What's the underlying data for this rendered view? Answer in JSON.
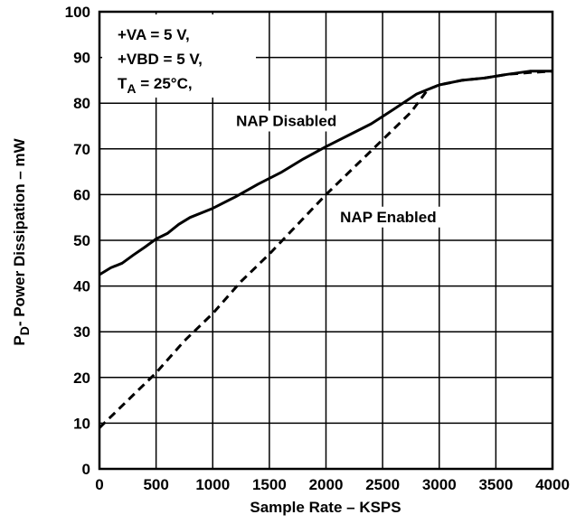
{
  "chart_data": {
    "type": "line",
    "xlabel": "Sample Rate – KSPS",
    "ylabel": "- Power Dissipation – mW",
    "ylabel_symbol": "P",
    "ylabel_subscript": "D",
    "xlim": [
      0,
      4000
    ],
    "ylim": [
      0,
      100
    ],
    "x_ticks": [
      "0",
      "500",
      "1000",
      "1500",
      "2000",
      "2500",
      "3000",
      "3500",
      "4000"
    ],
    "y_ticks": [
      "0",
      "10",
      "20",
      "30",
      "40",
      "50",
      "60",
      "70",
      "80",
      "90",
      "100"
    ],
    "grid": true,
    "conditions": {
      "line1": "+VA = 5 V,",
      "line2": "+VBD = 5 V,",
      "line3_symbol": "T",
      "line3_subscript": "A",
      "line3_rest": " = 25°C,"
    },
    "series": [
      {
        "name": "NAP Disabled",
        "style": "solid",
        "x": [
          0,
          100,
          200,
          300,
          400,
          500,
          600,
          700,
          800,
          1000,
          1200,
          1400,
          1600,
          1800,
          2000,
          2200,
          2400,
          2600,
          2800,
          2900,
          3000,
          3200,
          3400,
          3600,
          3800,
          4000
        ],
        "y": [
          42.5,
          44,
          45,
          46.8,
          48.5,
          50.3,
          51.5,
          53.5,
          55,
          57,
          59.5,
          62.3,
          64.8,
          67.8,
          70.5,
          73,
          75.5,
          78.7,
          82,
          83,
          84,
          85,
          85.5,
          86.3,
          87,
          87
        ]
      },
      {
        "name": "NAP Enabled",
        "style": "dashed",
        "x": [
          0,
          250,
          500,
          750,
          1000,
          1250,
          1500,
          1750,
          2000,
          2250,
          2500,
          2750,
          2900,
          3000,
          3200,
          3400,
          3600,
          3800,
          4000
        ],
        "y": [
          9,
          15,
          21,
          28,
          34,
          41,
          47,
          53.5,
          60,
          66,
          72,
          78,
          83,
          84,
          85,
          85.5,
          86.3,
          86.7,
          87
        ]
      }
    ],
    "annotations": [
      {
        "text": "NAP Disabled",
        "x": 1650,
        "y": 75
      },
      {
        "text": "NAP Enabled",
        "x": 2550,
        "y": 54
      }
    ],
    "colors": {
      "line": "#000000",
      "grid": "#000000",
      "background": "#ffffff"
    }
  }
}
